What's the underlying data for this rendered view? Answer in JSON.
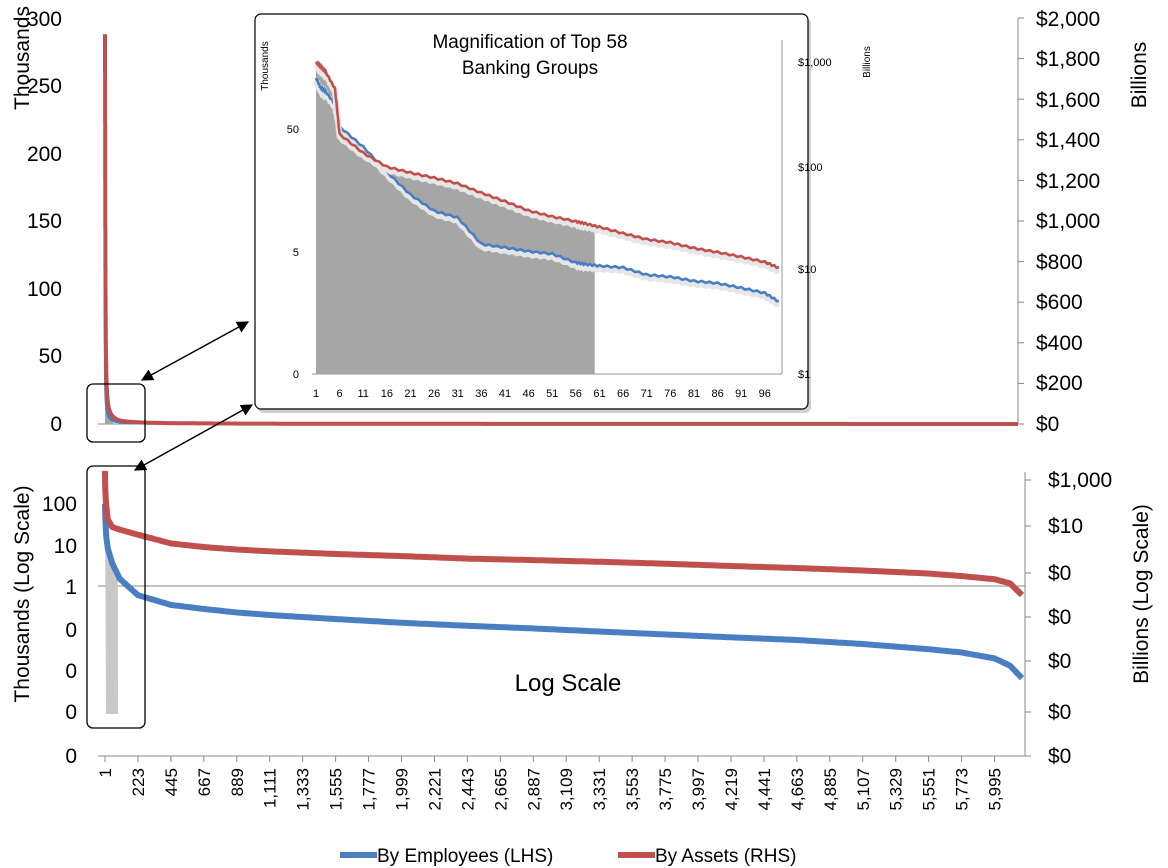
{
  "top_chart": {
    "left_axis_title": "Thousands",
    "right_axis_title": "Billions",
    "left_ticks": [
      "0",
      "50",
      "100",
      "150",
      "200",
      "250",
      "300"
    ],
    "right_ticks": [
      "$0",
      "$200",
      "$400",
      "$600",
      "$800",
      "$1,000",
      "$1,200",
      "$1,400",
      "$1,600",
      "$1,800",
      "$2,000"
    ]
  },
  "inset": {
    "title_line1": "Magnification of Top 58",
    "title_line2": "Banking Groups",
    "left_axis_title": "Thousands",
    "right_axis_title": "Billions",
    "left_ticks": [
      "0",
      "5",
      "50"
    ],
    "right_ticks": [
      "$1",
      "$10",
      "$100",
      "$1,000"
    ],
    "x_ticks": [
      "1",
      "6",
      "11",
      "16",
      "21",
      "26",
      "31",
      "36",
      "41",
      "46",
      "51",
      "56",
      "61",
      "66",
      "71",
      "76",
      "81",
      "86",
      "91",
      "96"
    ]
  },
  "bottom_chart": {
    "left_axis_title": "Thousands (Log Scale)",
    "right_axis_title": "Billions (Log Scale)",
    "left_ticks": [
      "0",
      "0",
      "0",
      "0",
      "1",
      "10",
      "100"
    ],
    "right_ticks": [
      "$0",
      "$0",
      "$0",
      "$0",
      "$0",
      "$10",
      "$1,000"
    ],
    "x_ticks": [
      "1",
      "223",
      "445",
      "667",
      "889",
      "1,111",
      "1,333",
      "1,555",
      "1,777",
      "1,999",
      "2,221",
      "2,443",
      "2,665",
      "2,887",
      "3,109",
      "3,331",
      "3,553",
      "3,775",
      "3,997",
      "4,219",
      "4,441",
      "4,663",
      "4,885",
      "5,107",
      "5,329",
      "5,551",
      "5,773",
      "5,995"
    ],
    "center_label": "Log Scale"
  },
  "legend": {
    "employees": "By Employees (LHS)",
    "assets": "By Assets (RHS)"
  },
  "colors": {
    "employees": "#4a7ec2",
    "assets": "#c0504d",
    "area": "#a6a6a6",
    "area_light": "#c8c8c8"
  },
  "chart_data": [
    {
      "type": "line",
      "title": "",
      "xlabel": "",
      "x": [
        1,
        2,
        3,
        5,
        10,
        20,
        58,
        100,
        500,
        1000,
        2000,
        3000,
        4000,
        5000,
        6000,
        6200
      ],
      "series": [
        {
          "name": "By Employees (LHS)",
          "axis": "left",
          "unit": "Thousands",
          "values": [
            95,
            80,
            60,
            30,
            15,
            8,
            2.5,
            1.5,
            0.4,
            0.25,
            0.15,
            0.1,
            0.08,
            0.05,
            0.03,
            0.01
          ]
        },
        {
          "name": "By Assets (RHS)",
          "axis": "right",
          "unit": "Billions",
          "values": [
            1920,
            1500,
            1100,
            600,
            250,
            110,
            35,
            18,
            4,
            2,
            1,
            0.6,
            0.4,
            0.25,
            0.12,
            0.05
          ]
        }
      ],
      "y_left_label": "Thousands",
      "y_left_lim": [
        0,
        300
      ],
      "y_right_label": "Billions",
      "y_right_lim": [
        0,
        2000
      ]
    },
    {
      "type": "line",
      "title": "Magnification of Top 58 Banking Groups",
      "xlabel": "",
      "x": [
        1,
        2,
        3,
        5,
        6,
        11,
        16,
        21,
        26,
        31,
        36,
        41,
        46,
        51,
        56,
        58,
        61,
        66,
        71,
        76,
        81,
        86,
        91,
        96,
        99
      ],
      "series": [
        {
          "name": "By Employees (LHS)",
          "axis": "left",
          "unit": "Thousands",
          "scale": "log",
          "values": [
            95,
            80,
            75,
            60,
            40,
            28,
            18,
            12,
            9,
            8,
            5,
            4.7,
            4.4,
            4.2,
            3.6,
            3.5,
            3.4,
            3.3,
            2.9,
            2.8,
            2.6,
            2.5,
            2.3,
            2.1,
            1.8
          ]
        },
        {
          "name": "By Assets (RHS)",
          "axis": "right",
          "unit": "Billions",
          "scale": "log",
          "values": [
            1900,
            1700,
            1500,
            1000,
            330,
            210,
            150,
            130,
            115,
            100,
            80,
            65,
            52,
            45,
            40,
            38,
            35,
            30,
            26,
            24,
            21,
            19,
            17,
            15,
            13
          ]
        }
      ],
      "area": {
        "series": "By Employees (LHS)",
        "x_range": [
          1,
          58
        ]
      }
    },
    {
      "type": "line",
      "title": "",
      "xlabel": "",
      "x": [
        1,
        2,
        5,
        10,
        20,
        50,
        100,
        223,
        445,
        667,
        889,
        1111,
        1555,
        1999,
        2443,
        2887,
        3331,
        3775,
        4219,
        4663,
        5107,
        5551,
        5773,
        5995,
        6100,
        6180
      ],
      "series": [
        {
          "name": "By Employees (LHS)",
          "axis": "left",
          "unit": "Thousands",
          "scale": "log",
          "values": [
            95,
            60,
            30,
            15,
            8,
            3.5,
            1.5,
            0.6,
            0.35,
            0.28,
            0.23,
            0.2,
            0.16,
            0.13,
            0.11,
            0.095,
            0.08,
            0.068,
            0.058,
            0.05,
            0.04,
            0.03,
            0.025,
            0.018,
            0.012,
            0.006
          ]
        },
        {
          "name": "By Assets (RHS)",
          "axis": "right",
          "unit": "Billions",
          "scale": "log",
          "values": [
            1900,
            600,
            250,
            110,
            40,
            22,
            18,
            12,
            6,
            4.5,
            3.7,
            3.2,
            2.6,
            2.2,
            1.8,
            1.6,
            1.4,
            1.2,
            1.0,
            0.85,
            0.7,
            0.55,
            0.45,
            0.35,
            0.25,
            0.1
          ]
        }
      ],
      "center_label": "Log Scale"
    }
  ]
}
